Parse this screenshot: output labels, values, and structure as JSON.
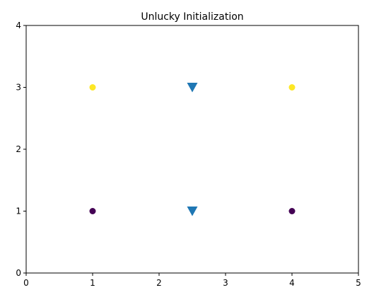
{
  "chart_data": {
    "type": "scatter",
    "title": "Unlucky Initialization",
    "xlabel": "",
    "ylabel": "",
    "xlim": [
      0,
      5
    ],
    "ylim": [
      0,
      4
    ],
    "xticks": [
      0,
      1,
      2,
      3,
      4,
      5
    ],
    "yticks": [
      0,
      1,
      2,
      3,
      4
    ],
    "xtick_labels": [
      "0",
      "1",
      "2",
      "3",
      "4",
      "5"
    ],
    "ytick_labels": [
      "0",
      "1",
      "2",
      "3",
      "4"
    ],
    "grid": false,
    "legend": "none",
    "series": [
      {
        "marker": "circle",
        "points": [
          {
            "x": 1,
            "y": 3,
            "color": "#fde725"
          },
          {
            "x": 4,
            "y": 3,
            "color": "#fde725"
          },
          {
            "x": 1,
            "y": 1,
            "color": "#440154"
          },
          {
            "x": 4,
            "y": 1,
            "color": "#440154"
          }
        ]
      },
      {
        "marker": "triangle-down",
        "points": [
          {
            "x": 2.5,
            "y": 3,
            "color": "#1f77b4"
          },
          {
            "x": 2.5,
            "y": 1,
            "color": "#1f77b4"
          }
        ]
      }
    ]
  }
}
